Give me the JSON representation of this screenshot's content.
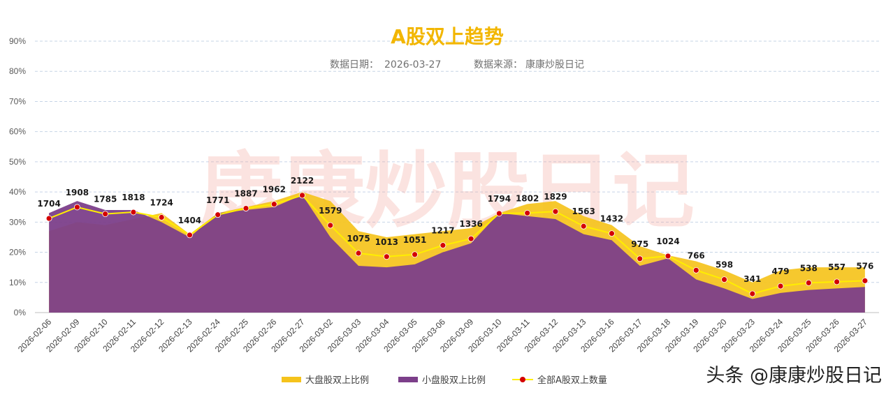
{
  "header": {
    "title": "A股双上趋势",
    "date_label": "数据日期：",
    "date_value": "2026-03-27",
    "source_label": "数据来源：",
    "source_value": "康康炒股日记"
  },
  "watermark": "康康炒股日记",
  "brand": "头条 @康康炒股日记",
  "colors": {
    "large_cap": "#f5c31c",
    "small_cap": "#7c3f8a",
    "line": "#ffee00",
    "marker": "#d40000",
    "title": "#f2b600"
  },
  "chart_data": {
    "type": "area",
    "title": "A股双上趋势",
    "ylim": [
      0,
      90
    ],
    "yticks": [
      "0%",
      "10%",
      "20%",
      "30%",
      "40%",
      "50%",
      "60%",
      "70%",
      "80%",
      "90%"
    ],
    "grid": true,
    "legend_position": "bottom-center",
    "categories": [
      "2026-02-06",
      "2026-02-09",
      "2026-02-10",
      "2026-02-11",
      "2026-02-12",
      "2026-02-13",
      "2026-02-24",
      "2026-02-25",
      "2026-02-26",
      "2026-02-27",
      "2026-03-02",
      "2026-03-03",
      "2026-03-04",
      "2026-03-05",
      "2026-03-06",
      "2026-03-09",
      "2026-03-10",
      "2026-03-11",
      "2026-03-12",
      "2026-03-13",
      "2026-03-16",
      "2026-03-17",
      "2026-03-18",
      "2026-03-19",
      "2026-03-20",
      "2026-03-23",
      "2026-03-24",
      "2026-03-25",
      "2026-03-26",
      "2026-03-27"
    ],
    "series": [
      {
        "name": "大盘股双上比例",
        "type": "area",
        "values": [
          27,
          30,
          29,
          31,
          33,
          26,
          33,
          35,
          37,
          40,
          37,
          27,
          25,
          26,
          27,
          28,
          33,
          36,
          37,
          32,
          29,
          22,
          19,
          17,
          14,
          10,
          14,
          15,
          15,
          15
        ]
      },
      {
        "name": "小盘股双上比例",
        "type": "area",
        "values": [
          33,
          37,
          34,
          34,
          30,
          25,
          33,
          34,
          35,
          39,
          25,
          15.5,
          15,
          16,
          20,
          23,
          33,
          32,
          31,
          26,
          24,
          15.5,
          18,
          11,
          8,
          4.5,
          6.5,
          7.5,
          8,
          8.5
        ]
      },
      {
        "name": "全部A股双上数量",
        "type": "line",
        "values": [
          1704,
          1908,
          1785,
          1818,
          1724,
          1404,
          1771,
          1887,
          1962,
          2122,
          1579,
          1075,
          1013,
          1051,
          1217,
          1336,
          1794,
          1802,
          1829,
          1563,
          1432,
          975,
          1024,
          766,
          598,
          341,
          479,
          538,
          557,
          576
        ]
      }
    ]
  }
}
